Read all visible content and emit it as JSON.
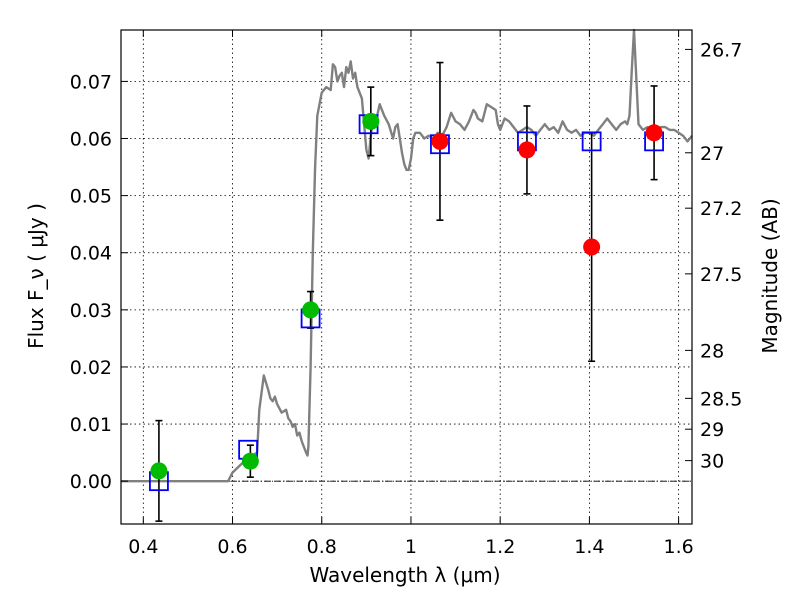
{
  "chart_data": {
    "type": "scatter",
    "xlabel": "Wavelength  λ (μm)",
    "ylabel": "Flux  F_ν  ( μJy )",
    "ylabel_right": "Magnitude (AB)",
    "xlim": [
      0.35,
      1.63
    ],
    "ylim": [
      -0.0075,
      0.079
    ],
    "x_ticks": [
      0.4,
      0.6,
      0.8,
      1.0,
      1.2,
      1.4,
      1.6
    ],
    "x_tick_labels": [
      "0.4",
      "0.6",
      "0.8",
      "1",
      "1.2",
      "1.4",
      "1.6"
    ],
    "y_ticks": [
      0.0,
      0.01,
      0.02,
      0.03,
      0.04,
      0.05,
      0.06,
      0.07
    ],
    "y_tick_labels": [
      "0.00",
      "0.01",
      "0.02",
      "0.03",
      "0.04",
      "0.05",
      "0.06",
      "0.07"
    ],
    "right_ticks": [
      {
        "label": "26.7",
        "flux": 0.0756
      },
      {
        "label": "27",
        "flux": 0.0575
      },
      {
        "label": "27.2",
        "flux": 0.0478
      },
      {
        "label": "27.5",
        "flux": 0.0363
      },
      {
        "label": "28",
        "flux": 0.0229
      },
      {
        "label": "28.5",
        "flux": 0.0145
      },
      {
        "label": "29",
        "flux": 0.0091
      },
      {
        "label": "30",
        "flux": 0.0036
      }
    ],
    "grid": true,
    "zero_line": true,
    "colors": {
      "spectrum": "#808080",
      "model": "#0000ff",
      "detection": "#00bb00",
      "observed_alt": "#ff0000",
      "errorbar": "#000000"
    },
    "series": [
      {
        "kind": "line",
        "points": [
          [
            0.35,
            0.0
          ],
          [
            0.59,
            0.0
          ],
          [
            0.6,
            0.0015
          ],
          [
            0.62,
            0.003
          ],
          [
            0.645,
            0.0045
          ],
          [
            0.655,
            0.005
          ],
          [
            0.66,
            0.0125
          ],
          [
            0.67,
            0.0185
          ],
          [
            0.68,
            0.016
          ],
          [
            0.685,
            0.0145
          ],
          [
            0.69,
            0.014
          ],
          [
            0.695,
            0.0148
          ],
          [
            0.7,
            0.0135
          ],
          [
            0.71,
            0.012
          ],
          [
            0.72,
            0.0125
          ],
          [
            0.725,
            0.011
          ],
          [
            0.73,
            0.0105
          ],
          [
            0.735,
            0.0095
          ],
          [
            0.74,
            0.01
          ],
          [
            0.745,
            0.008
          ],
          [
            0.75,
            0.0085
          ],
          [
            0.755,
            0.007
          ],
          [
            0.76,
            0.006
          ],
          [
            0.765,
            0.005
          ],
          [
            0.768,
            0.0045
          ],
          [
            0.77,
            0.006
          ],
          [
            0.775,
            0.02
          ],
          [
            0.78,
            0.04
          ],
          [
            0.785,
            0.055
          ],
          [
            0.79,
            0.064
          ],
          [
            0.8,
            0.068
          ],
          [
            0.81,
            0.069
          ],
          [
            0.82,
            0.0685
          ],
          [
            0.825,
            0.073
          ],
          [
            0.83,
            0.0725
          ],
          [
            0.835,
            0.07
          ],
          [
            0.84,
            0.071
          ],
          [
            0.845,
            0.0715
          ],
          [
            0.85,
            0.069
          ],
          [
            0.855,
            0.0725
          ],
          [
            0.86,
            0.0715
          ],
          [
            0.865,
            0.0735
          ],
          [
            0.87,
            0.0705
          ],
          [
            0.875,
            0.0715
          ],
          [
            0.88,
            0.069
          ],
          [
            0.89,
            0.067
          ],
          [
            0.895,
            0.0625
          ],
          [
            0.9,
            0.058
          ],
          [
            0.905,
            0.0565
          ],
          [
            0.91,
            0.0605
          ],
          [
            0.915,
            0.0635
          ],
          [
            0.92,
            0.0625
          ],
          [
            0.93,
            0.066
          ],
          [
            0.94,
            0.064
          ],
          [
            0.95,
            0.0625
          ],
          [
            0.96,
            0.06
          ],
          [
            0.965,
            0.062
          ],
          [
            0.97,
            0.0625
          ],
          [
            0.975,
            0.06
          ],
          [
            0.98,
            0.0575
          ],
          [
            0.985,
            0.0555
          ],
          [
            0.99,
            0.0545
          ],
          [
            0.995,
            0.0545
          ],
          [
            1.0,
            0.0565
          ],
          [
            1.005,
            0.06
          ],
          [
            1.01,
            0.061
          ],
          [
            1.02,
            0.061
          ],
          [
            1.03,
            0.06
          ],
          [
            1.04,
            0.0605
          ],
          [
            1.05,
            0.06
          ],
          [
            1.06,
            0.061
          ],
          [
            1.07,
            0.0605
          ],
          [
            1.08,
            0.062
          ],
          [
            1.09,
            0.0645
          ],
          [
            1.1,
            0.063
          ],
          [
            1.11,
            0.0625
          ],
          [
            1.12,
            0.0615
          ],
          [
            1.13,
            0.063
          ],
          [
            1.14,
            0.065
          ],
          [
            1.145,
            0.0645
          ],
          [
            1.15,
            0.0635
          ],
          [
            1.16,
            0.063
          ],
          [
            1.17,
            0.066
          ],
          [
            1.18,
            0.0655
          ],
          [
            1.19,
            0.065
          ],
          [
            1.195,
            0.0625
          ],
          [
            1.2,
            0.0615
          ],
          [
            1.21,
            0.0635
          ],
          [
            1.22,
            0.063
          ],
          [
            1.23,
            0.062
          ],
          [
            1.24,
            0.061
          ],
          [
            1.25,
            0.0615
          ],
          [
            1.26,
            0.062
          ],
          [
            1.27,
            0.0615
          ],
          [
            1.28,
            0.0605
          ],
          [
            1.29,
            0.0615
          ],
          [
            1.3,
            0.0625
          ],
          [
            1.31,
            0.0615
          ],
          [
            1.32,
            0.062
          ],
          [
            1.33,
            0.061
          ],
          [
            1.34,
            0.063
          ],
          [
            1.35,
            0.0615
          ],
          [
            1.36,
            0.061
          ],
          [
            1.37,
            0.0615
          ],
          [
            1.38,
            0.0605
          ],
          [
            1.39,
            0.061
          ],
          [
            1.4,
            0.061
          ],
          [
            1.41,
            0.0605
          ],
          [
            1.42,
            0.0615
          ],
          [
            1.43,
            0.0625
          ],
          [
            1.44,
            0.0635
          ],
          [
            1.45,
            0.0625
          ],
          [
            1.46,
            0.0615
          ],
          [
            1.47,
            0.0625
          ],
          [
            1.48,
            0.063
          ],
          [
            1.485,
            0.0625
          ],
          [
            1.49,
            0.064
          ],
          [
            1.495,
            0.072
          ],
          [
            1.5,
            0.079
          ],
          [
            1.505,
            0.071
          ],
          [
            1.51,
            0.0625
          ],
          [
            1.52,
            0.0615
          ],
          [
            1.53,
            0.062
          ],
          [
            1.54,
            0.0615
          ],
          [
            1.55,
            0.061
          ],
          [
            1.56,
            0.062
          ],
          [
            1.57,
            0.062
          ],
          [
            1.58,
            0.0615
          ],
          [
            1.59,
            0.0615
          ],
          [
            1.6,
            0.061
          ],
          [
            1.61,
            0.0605
          ],
          [
            1.62,
            0.0595
          ],
          [
            1.63,
            0.0605
          ]
        ]
      },
      {
        "kind": "model_squares",
        "points": [
          [
            0.435,
            0.0
          ],
          [
            0.635,
            0.0055
          ],
          [
            0.775,
            0.0285
          ],
          [
            0.905,
            0.0625
          ],
          [
            1.065,
            0.059
          ],
          [
            1.26,
            0.0595
          ],
          [
            1.405,
            0.0595
          ],
          [
            1.545,
            0.0595
          ]
        ]
      },
      {
        "kind": "green_points",
        "points": [
          {
            "x": 0.435,
            "y": 0.0018,
            "err": 0.0088
          },
          {
            "x": 0.64,
            "y": 0.0035,
            "err": 0.0028
          },
          {
            "x": 0.775,
            "y": 0.03,
            "err": 0.0032
          },
          {
            "x": 0.91,
            "y": 0.063,
            "err": 0.006
          }
        ]
      },
      {
        "kind": "red_points",
        "points": [
          {
            "x": 1.065,
            "y": 0.0595,
            "err": 0.0138
          },
          {
            "x": 1.26,
            "y": 0.058,
            "err": 0.0077
          },
          {
            "x": 1.405,
            "y": 0.041,
            "err": 0.02
          },
          {
            "x": 1.545,
            "y": 0.061,
            "err": 0.0082
          }
        ]
      }
    ]
  }
}
